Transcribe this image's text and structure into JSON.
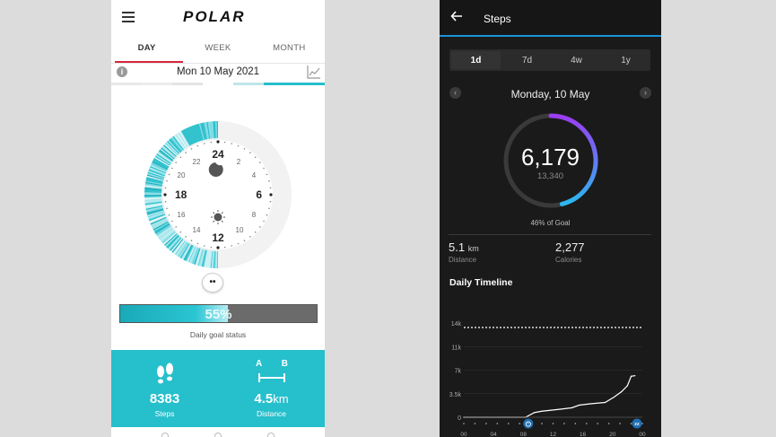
{
  "polar": {
    "brand": "POLAR",
    "tabs": [
      {
        "label": "DAY",
        "active": true
      },
      {
        "label": "WEEK",
        "active": false
      },
      {
        "label": "MONTH",
        "active": false
      }
    ],
    "date": "Mon 10 May 2021",
    "dial": {
      "hours_major": [
        "24",
        "6",
        "12",
        "18"
      ],
      "hours_minor": [
        "2",
        "4",
        "8",
        "10",
        "14",
        "16",
        "20",
        "22"
      ],
      "night_icon": "moon-icon",
      "day_icon": "sun-icon"
    },
    "bubble_icon": "two-dots-icon",
    "goal": {
      "percent_label": "55%",
      "fraction": 0.55,
      "caption": "Daily goal status"
    },
    "stats": {
      "steps": {
        "value": "8383",
        "label": "Steps",
        "icon": "footsteps-icon"
      },
      "distance": {
        "value": "4.5",
        "unit": "km",
        "label": "Distance",
        "icon": "a-b-distance-icon",
        "a": "A",
        "b": "B"
      }
    },
    "colors": {
      "accent": "#26bfcc",
      "tab_underline": "#d7263d"
    }
  },
  "garmin": {
    "title": "Steps",
    "range_tabs": [
      {
        "label": "1d",
        "active": true
      },
      {
        "label": "7d",
        "active": false
      },
      {
        "label": "4w",
        "active": false
      },
      {
        "label": "1y",
        "active": false
      }
    ],
    "date": "Monday, 10 May",
    "steps": "6,179",
    "goal_steps": "13,340",
    "goal_fraction": 0.46,
    "goal_label": "46% of Goal",
    "distance": {
      "value": "5.1",
      "unit": "km",
      "label": "Distance"
    },
    "calories": {
      "value": "2,277",
      "label": "Calories"
    },
    "timeline_title": "Daily Timeline",
    "colors": {
      "header_line": "#1d93d9",
      "ring_start": "#2bb7f0",
      "ring_end": "#9b3df2"
    }
  },
  "chart_data": {
    "type": "line",
    "ylabels": [
      "14k",
      "11k",
      "7k",
      "3.5k",
      "0"
    ],
    "yticks": [
      14000,
      10500,
      7000,
      3500,
      0
    ],
    "xlabels": [
      "00",
      "04",
      "08",
      "12",
      "16",
      "20",
      "00"
    ],
    "xticks": [
      0,
      4,
      8,
      12,
      16,
      20,
      24
    ],
    "ylim": [
      0,
      14000
    ],
    "xlim": [
      0,
      24
    ],
    "goal_line": 13340,
    "x": [
      0,
      8.3,
      9.5,
      10.5,
      13,
      14.5,
      15.5,
      17,
      19,
      20.2,
      21.2,
      22,
      22.5,
      23
    ],
    "values": [
      0,
      0,
      700,
      900,
      1200,
      1400,
      1800,
      2000,
      2200,
      3000,
      3800,
      4700,
      6100,
      6179
    ],
    "markers": {
      "wake_icon": "alarm-clock-icon",
      "sleep_icon": "sleep-zzz-icon"
    }
  }
}
